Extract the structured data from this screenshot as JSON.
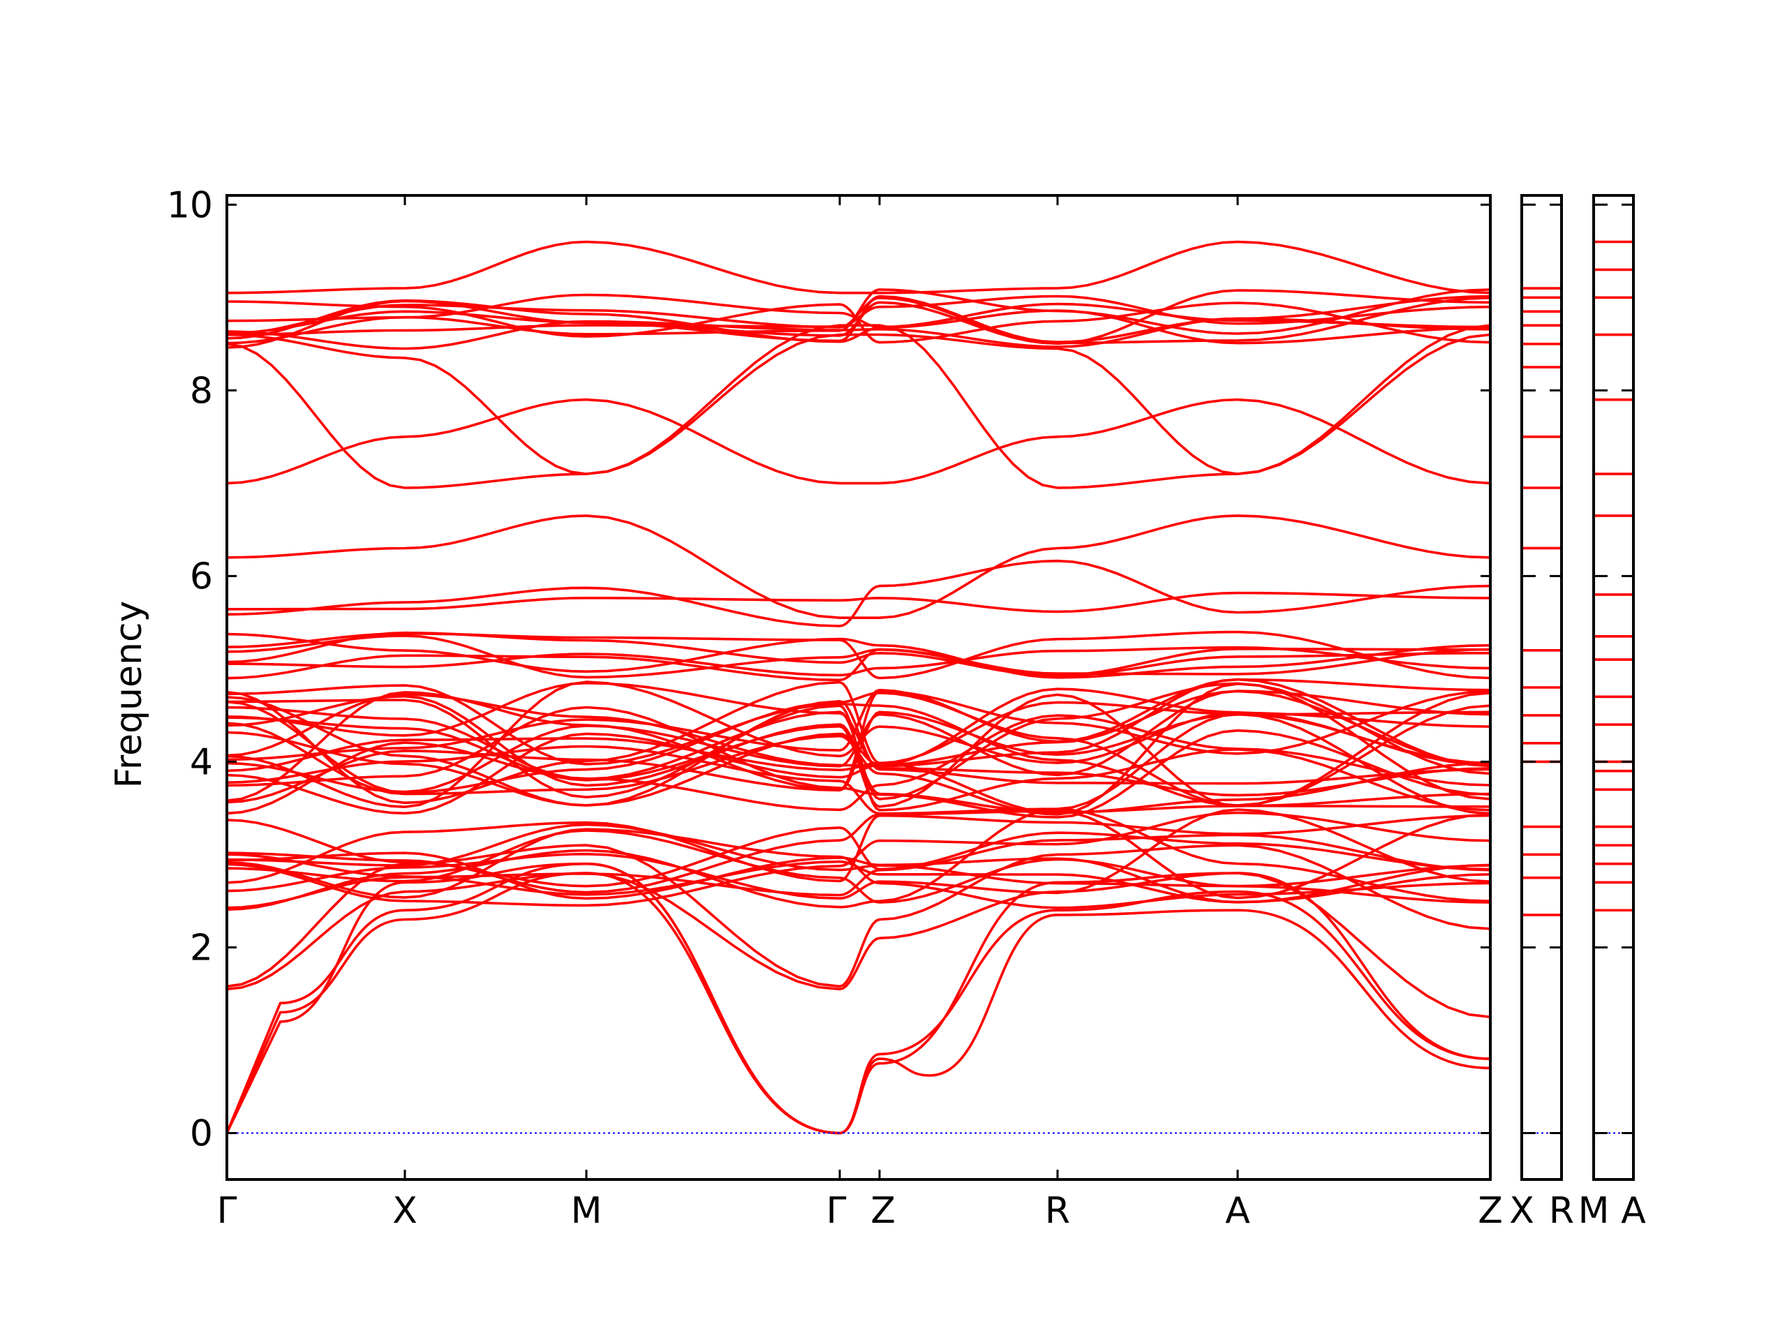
{
  "chart_data": {
    "type": "line",
    "title": "",
    "xlabel": "",
    "ylabel": "Frequency",
    "ylim": [
      -0.5,
      10.1
    ],
    "yticks": [
      "0",
      "2",
      "4",
      "6",
      "8",
      "10"
    ],
    "grid": "dashed horizontal lines at y ticks in side panels only",
    "line_color": "#ff0000",
    "zero_line_color": "#0000ff",
    "main_panel": {
      "kpoints": [
        "Γ",
        "X",
        "M",
        "Γ",
        "Z",
        "R",
        "A",
        "Z"
      ],
      "kpos": [
        0,
        1,
        2,
        3.4,
        3.62,
        4.62,
        5.62,
        7.0
      ],
      "representative_bands": [
        {
          "name": "acoustic-1",
          "x": [
            0,
            0.3,
            1,
            2,
            3.4,
            3.62,
            3.9,
            4.62,
            5.62,
            7.0
          ],
          "y": [
            0,
            1.3,
            2.3,
            2.8,
            0,
            0.8,
            0.62,
            2.35,
            2.4,
            0.7
          ]
        },
        {
          "name": "acoustic-2",
          "x": [
            0,
            0.3,
            1,
            2,
            3.4,
            3.62,
            4.62,
            5.62,
            7.0
          ],
          "y": [
            0,
            1.4,
            2.4,
            2.9,
            0,
            0.85,
            2.4,
            2.6,
            0.8
          ]
        },
        {
          "name": "acoustic-3",
          "x": [
            0,
            0.3,
            1,
            2,
            3.4,
            3.62,
            4.62,
            5.62,
            7.0
          ],
          "y": [
            0,
            1.2,
            2.7,
            2.9,
            0,
            0.75,
            2.7,
            2.8,
            0.8
          ]
        },
        {
          "name": "optical-7.0",
          "x": [
            0,
            1,
            2,
            3.4,
            3.62,
            4.62,
            5.62,
            7.0
          ],
          "y": [
            7.0,
            7.5,
            7.9,
            7.0,
            7.0,
            7.5,
            7.9,
            7.0
          ]
        },
        {
          "name": "optical-6.2",
          "x": [
            0,
            1,
            2,
            3.4,
            3.62,
            4.62,
            5.62,
            7.0
          ],
          "y": [
            6.2,
            6.3,
            6.65,
            5.55,
            5.55,
            6.3,
            6.65,
            6.2
          ]
        },
        {
          "name": "optical-9.0",
          "x": [
            0,
            1,
            2,
            3.4,
            3.62,
            4.62,
            5.62,
            7.0
          ],
          "y": [
            9.05,
            9.1,
            9.6,
            9.05,
            9.05,
            9.1,
            9.6,
            9.05
          ]
        }
      ]
    },
    "side_panel_1": {
      "kpoints": [
        "X",
        "R"
      ],
      "flat_levels": [
        2.35,
        2.75,
        3.0,
        3.3,
        4.0,
        4.2,
        4.5,
        4.8,
        5.2,
        6.3,
        6.95,
        7.5,
        8.25,
        8.5,
        8.7,
        8.85,
        9.0,
        9.1
      ]
    },
    "side_panel_2": {
      "kpoints": [
        "M",
        "A"
      ],
      "flat_levels": [
        2.4,
        2.7,
        2.9,
        3.1,
        3.3,
        3.7,
        3.9,
        4.0,
        4.4,
        4.7,
        5.1,
        5.35,
        5.8,
        6.65,
        7.1,
        7.9,
        8.6,
        9.0,
        9.3,
        9.6
      ]
    }
  }
}
